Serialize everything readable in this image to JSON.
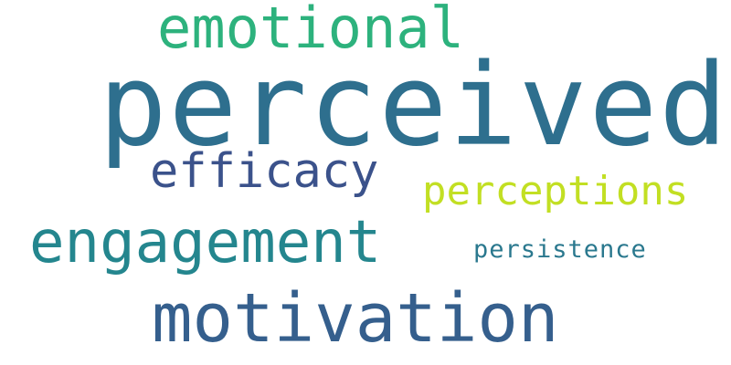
{
  "words": [
    {
      "id": "perceived",
      "text": "perceived",
      "color": "#2e6f8e"
    },
    {
      "id": "emotional",
      "text": "emotional",
      "color": "#2db27d"
    },
    {
      "id": "efficacy",
      "text": "efficacy",
      "color": "#3b528b"
    },
    {
      "id": "perceptions",
      "text": "perceptions",
      "color": "#c2df23"
    },
    {
      "id": "engagement",
      "text": "engagement",
      "color": "#24868e"
    },
    {
      "id": "persistence",
      "text": "persistence",
      "color": "#2a788e"
    },
    {
      "id": "motivation",
      "text": "motivation",
      "color": "#355f8d"
    }
  ]
}
